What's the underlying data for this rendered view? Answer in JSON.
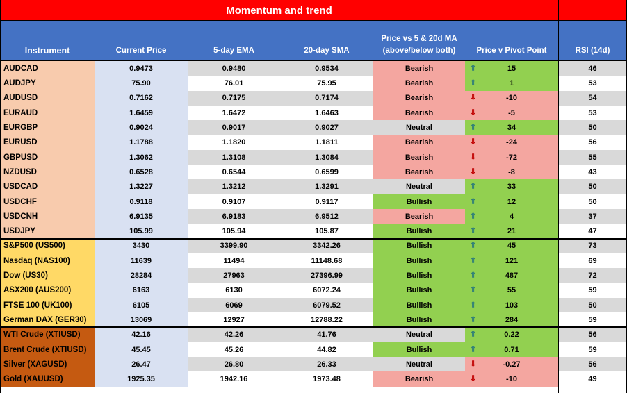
{
  "title": "Momentum and trend",
  "headers": {
    "instrument": "Instrument",
    "current_price": "Current Price",
    "ema5": "5-day EMA",
    "sma20": "20-day SMA",
    "ma_signal": "Price vs 5 & 20d MA (above/below both)",
    "pivot": "Price v  Pivot Point",
    "rsi": "RSI (14d)"
  },
  "colors": {
    "title_bg": "#ff0000",
    "header_bg": "#4472c4",
    "fx_bg": "#f8cbad",
    "index_bg": "#ffd966",
    "commodity_bg": "#c55a11",
    "current_price_bg": "#d9e1f2",
    "stripe_bg": "#d9d9d9",
    "bearish_bg": "#f4a6a0",
    "bullish_bg": "#92d050",
    "neutral_bg": "#d9d9d9",
    "arrow_up": "#2e7d7a",
    "arrow_down": "#c00000"
  },
  "rows": [
    {
      "group": "fx",
      "instrument": "AUDCAD",
      "price": "0.9473",
      "ema5": "0.9480",
      "sma20": "0.9534",
      "signal": "Bearish",
      "pivot_dir": "up",
      "pivot": "15",
      "rsi": "46"
    },
    {
      "group": "fx",
      "instrument": "AUDJPY",
      "price": "75.90",
      "ema5": "76.01",
      "sma20": "75.95",
      "signal": "Bearish",
      "pivot_dir": "up",
      "pivot": "1",
      "rsi": "53"
    },
    {
      "group": "fx",
      "instrument": "AUDUSD",
      "price": "0.7162",
      "ema5": "0.7175",
      "sma20": "0.7174",
      "signal": "Bearish",
      "pivot_dir": "down",
      "pivot": "-10",
      "rsi": "54"
    },
    {
      "group": "fx",
      "instrument": "EURAUD",
      "price": "1.6459",
      "ema5": "1.6472",
      "sma20": "1.6463",
      "signal": "Bearish",
      "pivot_dir": "down",
      "pivot": "-5",
      "rsi": "53"
    },
    {
      "group": "fx",
      "instrument": "EURGBP",
      "price": "0.9024",
      "ema5": "0.9017",
      "sma20": "0.9027",
      "signal": "Neutral",
      "pivot_dir": "up",
      "pivot": "34",
      "rsi": "50"
    },
    {
      "group": "fx",
      "instrument": "EURUSD",
      "price": "1.1788",
      "ema5": "1.1820",
      "sma20": "1.1811",
      "signal": "Bearish",
      "pivot_dir": "down",
      "pivot": "-24",
      "rsi": "56"
    },
    {
      "group": "fx",
      "instrument": "GBPUSD",
      "price": "1.3062",
      "ema5": "1.3108",
      "sma20": "1.3084",
      "signal": "Bearish",
      "pivot_dir": "down",
      "pivot": "-72",
      "rsi": "55"
    },
    {
      "group": "fx",
      "instrument": "NZDUSD",
      "price": "0.6528",
      "ema5": "0.6544",
      "sma20": "0.6599",
      "signal": "Bearish",
      "pivot_dir": "down",
      "pivot": "-8",
      "rsi": "43"
    },
    {
      "group": "fx",
      "instrument": "USDCAD",
      "price": "1.3227",
      "ema5": "1.3212",
      "sma20": "1.3291",
      "signal": "Neutral",
      "pivot_dir": "up",
      "pivot": "33",
      "rsi": "50"
    },
    {
      "group": "fx",
      "instrument": "USDCHF",
      "price": "0.9118",
      "ema5": "0.9107",
      "sma20": "0.9117",
      "signal": "Bullish",
      "pivot_dir": "up",
      "pivot": "12",
      "rsi": "50"
    },
    {
      "group": "fx",
      "instrument": "USDCNH",
      "price": "6.9135",
      "ema5": "6.9183",
      "sma20": "6.9512",
      "signal": "Bearish",
      "pivot_dir": "up",
      "pivot": "4",
      "rsi": "37"
    },
    {
      "group": "fx",
      "instrument": "USDJPY",
      "price": "105.99",
      "ema5": "105.94",
      "sma20": "105.87",
      "signal": "Bullish",
      "pivot_dir": "up",
      "pivot": "21",
      "rsi": "47"
    },
    {
      "group": "index",
      "instrument": "S&P500 (US500)",
      "price": "3430",
      "ema5": "3399.90",
      "sma20": "3342.26",
      "signal": "Bullish",
      "pivot_dir": "up",
      "pivot": "45",
      "rsi": "73"
    },
    {
      "group": "index",
      "instrument": "Nasdaq (NAS100)",
      "price": "11639",
      "ema5": "11494",
      "sma20": "11148.68",
      "signal": "Bullish",
      "pivot_dir": "up",
      "pivot": "121",
      "rsi": "69"
    },
    {
      "group": "index",
      "instrument": "Dow (US30)",
      "price": "28284",
      "ema5": "27963",
      "sma20": "27396.99",
      "signal": "Bullish",
      "pivot_dir": "up",
      "pivot": "487",
      "rsi": "72"
    },
    {
      "group": "index",
      "instrument": "ASX200 (AUS200)",
      "price": "6163",
      "ema5": "6130",
      "sma20": "6072.24",
      "signal": "Bullish",
      "pivot_dir": "up",
      "pivot": "55",
      "rsi": "59"
    },
    {
      "group": "index",
      "instrument": "FTSE 100 (UK100)",
      "price": "6105",
      "ema5": "6069",
      "sma20": "6079.52",
      "signal": "Bullish",
      "pivot_dir": "up",
      "pivot": "103",
      "rsi": "50"
    },
    {
      "group": "index",
      "instrument": "German DAX (GER30)",
      "price": "13069",
      "ema5": "12927",
      "sma20": "12788.22",
      "signal": "Bullish",
      "pivot_dir": "up",
      "pivot": "284",
      "rsi": "59"
    },
    {
      "group": "commodity",
      "instrument": "WTI Crude (XTIUSD)",
      "price": "42.16",
      "ema5": "42.26",
      "sma20": "41.76",
      "signal": "Neutral",
      "pivot_dir": "up",
      "pivot": "0.22",
      "rsi": "56"
    },
    {
      "group": "commodity",
      "instrument": "Brent Crude (XTIUSD)",
      "price": "45.45",
      "ema5": "45.26",
      "sma20": "44.82",
      "signal": "Bullish",
      "pivot_dir": "up",
      "pivot": "0.71",
      "rsi": "59"
    },
    {
      "group": "commodity",
      "instrument": "Silver  (XAGUSD)",
      "price": "26.47",
      "ema5": "26.80",
      "sma20": "26.33",
      "signal": "Neutral",
      "pivot_dir": "down",
      "pivot": "-0.27",
      "rsi": "56"
    },
    {
      "group": "commodity",
      "instrument": "Gold (XAUUSD)",
      "price": "1925.35",
      "ema5": "1942.16",
      "sma20": "1973.48",
      "signal": "Bearish",
      "pivot_dir": "down",
      "pivot": "-10",
      "rsi": "49"
    }
  ]
}
